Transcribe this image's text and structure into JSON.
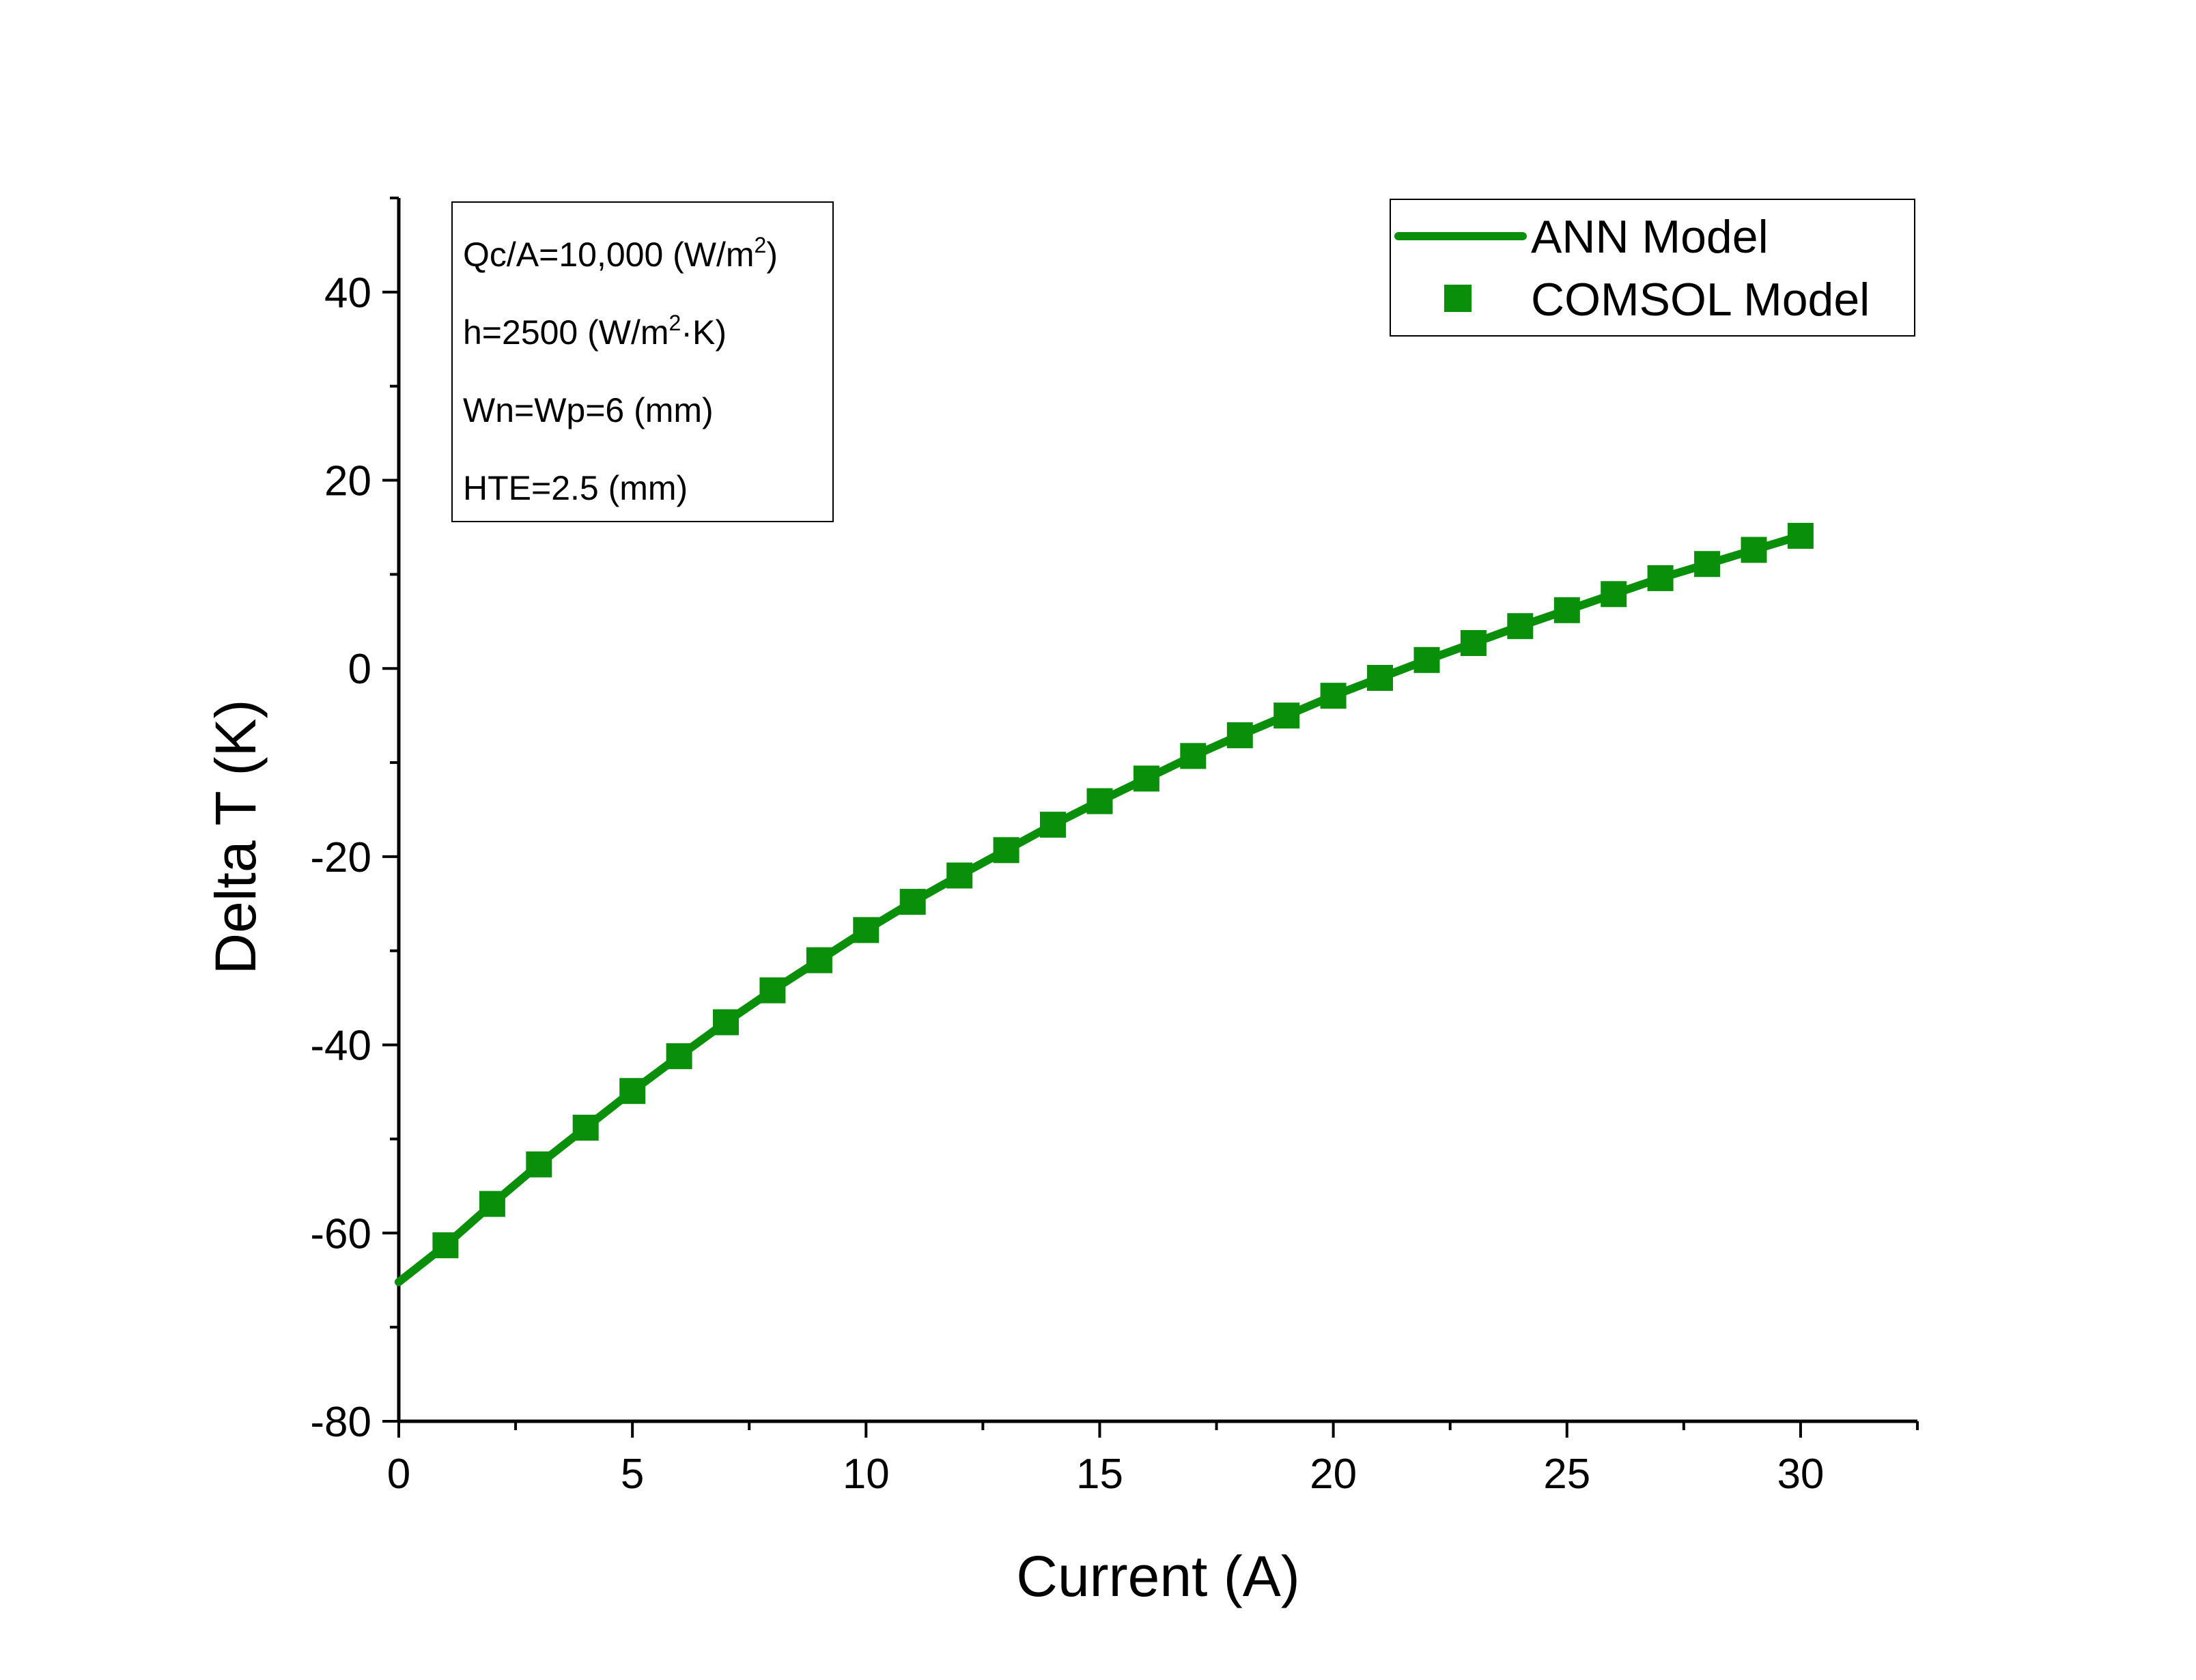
{
  "chart_data": {
    "type": "line",
    "xlabel": "Current (A)",
    "ylabel": "Delta T (K)",
    "xlim": [
      0,
      32.5
    ],
    "ylim": [
      -80,
      50
    ],
    "x_ticks": [
      0,
      5,
      10,
      15,
      20,
      25,
      30
    ],
    "y_ticks": [
      -80,
      -60,
      -40,
      -20,
      0,
      20,
      40
    ],
    "grid": false,
    "legend_position": "top-right",
    "color": "#0a8f0a",
    "series": [
      {
        "name": "ANN Model",
        "style": "line",
        "x": [
          0,
          1,
          2,
          3,
          4,
          5,
          6,
          7,
          8,
          9,
          10,
          11,
          12,
          13,
          14,
          15,
          16,
          17,
          18,
          19,
          20,
          21,
          22,
          23,
          24,
          25,
          26,
          27,
          28,
          29,
          30
        ],
        "y": [
          -65.2,
          -61.3,
          -56.9,
          -52.7,
          -48.8,
          -44.9,
          -41.2,
          -37.6,
          -34.2,
          -31.0,
          -27.8,
          -24.8,
          -22.0,
          -19.3,
          -16.6,
          -14.1,
          -11.7,
          -9.3,
          -7.1,
          -5.0,
          -2.9,
          -1.0,
          0.9,
          2.7,
          4.5,
          6.2,
          7.9,
          9.6,
          11.1,
          12.6,
          14.1
        ]
      },
      {
        "name": "COMSOL Model",
        "style": "markers",
        "marker": "square-icon",
        "x": [
          1,
          2,
          3,
          4,
          5,
          6,
          7,
          8,
          9,
          10,
          11,
          12,
          13,
          14,
          15,
          16,
          17,
          18,
          19,
          20,
          21,
          22,
          23,
          24,
          25,
          26,
          27,
          28,
          29,
          30
        ],
        "y": [
          -61.3,
          -56.9,
          -52.7,
          -48.8,
          -44.9,
          -41.2,
          -37.6,
          -34.2,
          -31.0,
          -27.8,
          -24.8,
          -22.0,
          -19.3,
          -16.6,
          -14.1,
          -11.7,
          -9.3,
          -7.1,
          -5.0,
          -2.9,
          -1.0,
          0.9,
          2.7,
          4.5,
          6.2,
          7.9,
          9.6,
          11.1,
          12.6,
          14.1
        ]
      }
    ],
    "annotation": [
      {
        "main": "Qc/A=10,000 (W/m",
        "sup": "2",
        "tail": ")"
      },
      {
        "main": "h=2500 (W/m",
        "sup": "2",
        "tail": "·K)"
      },
      {
        "main": "Wn=Wp=6 (mm)",
        "sup": "",
        "tail": ""
      },
      {
        "main": "HTE=2.5 (mm)",
        "sup": "",
        "tail": ""
      }
    ]
  }
}
